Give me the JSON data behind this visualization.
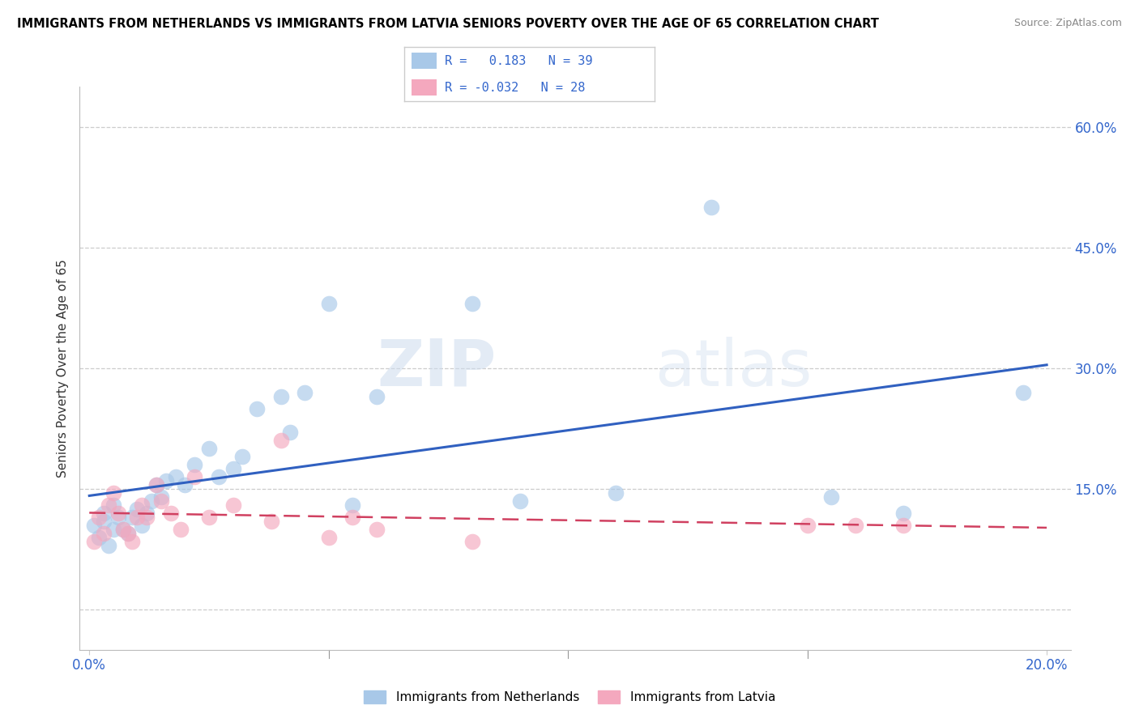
{
  "title": "IMMIGRANTS FROM NETHERLANDS VS IMMIGRANTS FROM LATVIA SENIORS POVERTY OVER THE AGE OF 65 CORRELATION CHART",
  "source": "Source: ZipAtlas.com",
  "ylabel": "Seniors Poverty Over the Age of 65",
  "yticks": [
    0.0,
    0.15,
    0.3,
    0.45,
    0.6
  ],
  "ytick_labels": [
    "",
    "15.0%",
    "30.0%",
    "45.0%",
    "60.0%"
  ],
  "xticks": [
    0.0,
    0.05,
    0.1,
    0.15,
    0.2
  ],
  "xtick_labels": [
    "0.0%",
    "",
    "",
    "",
    "20.0%"
  ],
  "xlim": [
    -0.002,
    0.205
  ],
  "ylim": [
    -0.05,
    0.65
  ],
  "netherlands_color": "#a8c8e8",
  "latvia_color": "#f4a8be",
  "netherlands_line_color": "#3060c0",
  "latvia_line_color": "#d04060",
  "netherlands_R": 0.183,
  "netherlands_N": 39,
  "latvia_R": -0.032,
  "latvia_N": 28,
  "watermark_zip": "ZIP",
  "watermark_atlas": "atlas",
  "nl_scatter_x": [
    0.001,
    0.002,
    0.003,
    0.003,
    0.004,
    0.005,
    0.005,
    0.006,
    0.007,
    0.008,
    0.009,
    0.01,
    0.011,
    0.012,
    0.013,
    0.014,
    0.015,
    0.016,
    0.018,
    0.02,
    0.022,
    0.025,
    0.027,
    0.03,
    0.032,
    0.035,
    0.04,
    0.042,
    0.045,
    0.05,
    0.055,
    0.06,
    0.08,
    0.09,
    0.11,
    0.13,
    0.155,
    0.17,
    0.195
  ],
  "nl_scatter_y": [
    0.105,
    0.09,
    0.12,
    0.11,
    0.08,
    0.13,
    0.1,
    0.115,
    0.1,
    0.095,
    0.115,
    0.125,
    0.105,
    0.12,
    0.135,
    0.155,
    0.14,
    0.16,
    0.165,
    0.155,
    0.18,
    0.2,
    0.165,
    0.175,
    0.19,
    0.25,
    0.265,
    0.22,
    0.27,
    0.38,
    0.13,
    0.265,
    0.38,
    0.135,
    0.145,
    0.5,
    0.14,
    0.12,
    0.27
  ],
  "lv_scatter_x": [
    0.001,
    0.002,
    0.003,
    0.004,
    0.005,
    0.006,
    0.007,
    0.008,
    0.009,
    0.01,
    0.011,
    0.012,
    0.014,
    0.015,
    0.017,
    0.019,
    0.022,
    0.025,
    0.03,
    0.038,
    0.04,
    0.05,
    0.055,
    0.06,
    0.08,
    0.15,
    0.16,
    0.17
  ],
  "lv_scatter_y": [
    0.085,
    0.115,
    0.095,
    0.13,
    0.145,
    0.12,
    0.1,
    0.095,
    0.085,
    0.115,
    0.13,
    0.115,
    0.155,
    0.135,
    0.12,
    0.1,
    0.165,
    0.115,
    0.13,
    0.11,
    0.21,
    0.09,
    0.115,
    0.1,
    0.085,
    0.105,
    0.105,
    0.105
  ]
}
